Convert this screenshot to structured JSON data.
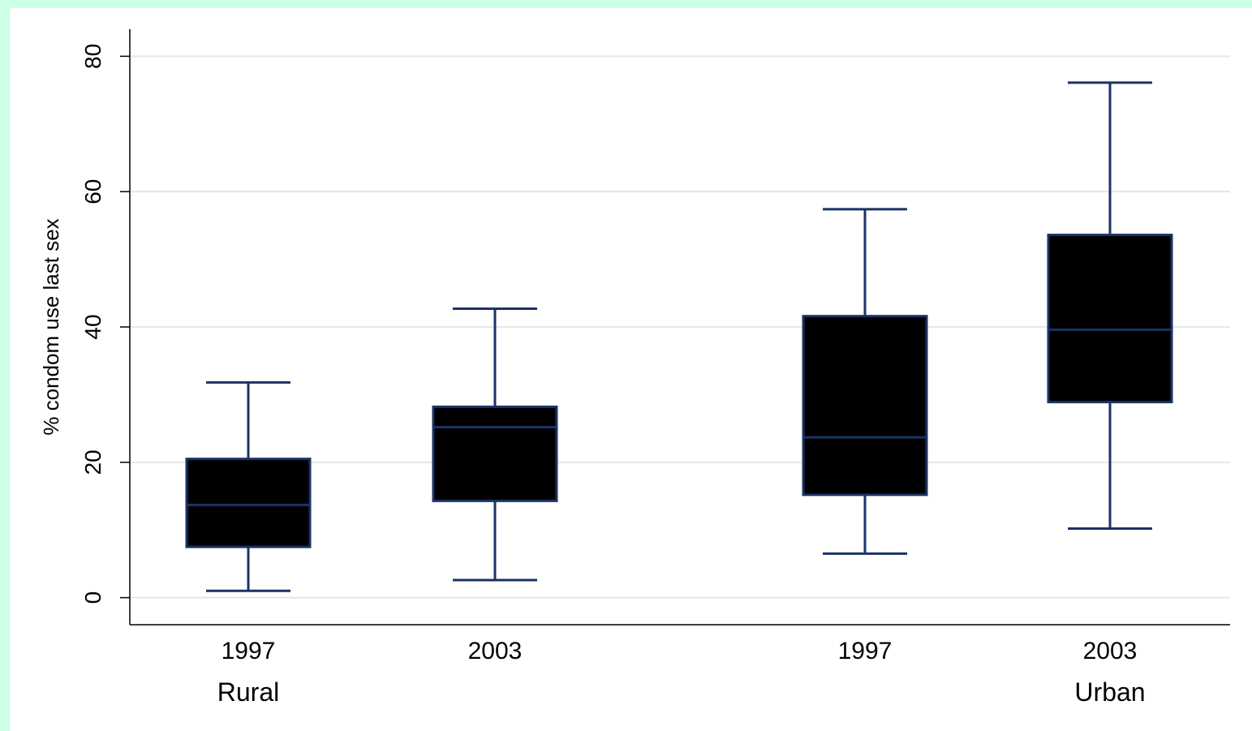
{
  "chart_data": {
    "type": "box",
    "title": "",
    "ylabel": "% condom use last sex",
    "xlabel": "",
    "ylim": [
      -4,
      84
    ],
    "yticks": [
      0,
      20,
      40,
      60,
      80
    ],
    "grid": true,
    "groups": [
      {
        "label": "Rural",
        "boxes": [
          {
            "label": "1997",
            "min": 1,
            "q1": 7.5,
            "median": 13.7,
            "q3": 20.5,
            "max": 31.8
          },
          {
            "label": "2003",
            "min": 2.6,
            "q1": 14.3,
            "median": 25.2,
            "q3": 28.2,
            "max": 42.7
          }
        ]
      },
      {
        "label": "Urban",
        "boxes": [
          {
            "label": "1997",
            "min": 6.5,
            "q1": 15.2,
            "median": 23.7,
            "q3": 41.6,
            "max": 57.4
          },
          {
            "label": "2003",
            "min": 10.2,
            "q1": 28.9,
            "median": 39.6,
            "q3": 53.6,
            "max": 76.1
          }
        ]
      }
    ],
    "colors": {
      "box_fill": "#000000",
      "box_stroke": "#1a3366",
      "grid": "#e6e6e6",
      "axis": "#000000",
      "background": "#ccffe6"
    }
  }
}
